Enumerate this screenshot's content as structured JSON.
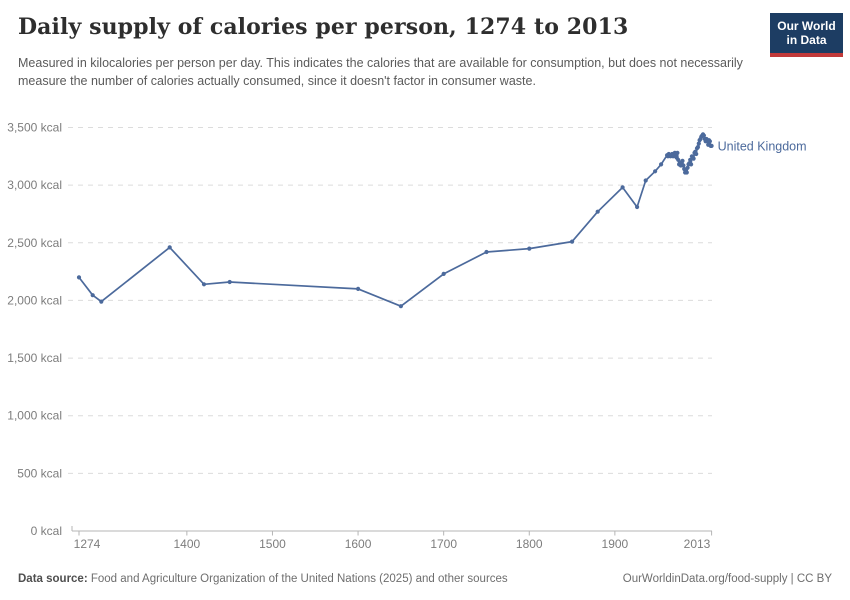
{
  "header": {
    "title": "Daily supply of calories per person, 1274 to 2013",
    "subtitle": "Measured in kilocalories per person per day. This indicates the calories that are available for consumption, but does not necessarily measure the number of calories actually consumed, since it doesn't factor in consumer waste."
  },
  "logo": {
    "line1": "Our World",
    "line2": "in Data",
    "bg_color": "#1d3d63",
    "bar_color": "#c23a3a"
  },
  "footer": {
    "source_label": "Data source:",
    "source_text": " Food and Agriculture Organization of the United Nations (2025) and other sources",
    "link_text": "OurWorldinData.org/food-supply | CC BY"
  },
  "colors": {
    "series_blue": "#4c6a9c",
    "gridline": "#dcdcdc",
    "axis_line": "#b5b5b5",
    "tick_text": "#7d7d7d"
  },
  "chart_data": {
    "type": "line",
    "title": "Daily supply of calories per person, 1274 to 2013",
    "xlabel": "",
    "ylabel": "",
    "unit": "kcal",
    "xlim": [
      1274,
      2013
    ],
    "ylim": [
      0,
      3500
    ],
    "grid": "horizontal dashed",
    "legend_position": "end-of-line label",
    "x_ticks": [
      {
        "v": 1274,
        "label": "1274"
      },
      {
        "v": 1400,
        "label": "1400"
      },
      {
        "v": 1500,
        "label": "1500"
      },
      {
        "v": 1600,
        "label": "1600"
      },
      {
        "v": 1700,
        "label": "1700"
      },
      {
        "v": 1800,
        "label": "1800"
      },
      {
        "v": 1900,
        "label": "1900"
      },
      {
        "v": 2013,
        "label": "2013"
      }
    ],
    "y_ticks": [
      {
        "v": 0,
        "label": "0 kcal"
      },
      {
        "v": 500,
        "label": "500 kcal"
      },
      {
        "v": 1000,
        "label": "1,000 kcal"
      },
      {
        "v": 1500,
        "label": "1,500 kcal"
      },
      {
        "v": 2000,
        "label": "2,000 kcal"
      },
      {
        "v": 2500,
        "label": "2,500 kcal"
      },
      {
        "v": 3000,
        "label": "3,000 kcal"
      },
      {
        "v": 3500,
        "label": "3,500 kcal"
      }
    ],
    "series": [
      {
        "name": "United Kingdom",
        "color": "#4c6a9c",
        "points": [
          [
            1274,
            2200
          ],
          [
            1290,
            2045
          ],
          [
            1300,
            1990
          ],
          [
            1380,
            2460
          ],
          [
            1420,
            2140
          ],
          [
            1450,
            2160
          ],
          [
            1600,
            2100
          ],
          [
            1650,
            1950
          ],
          [
            1700,
            2230
          ],
          [
            1750,
            2420
          ],
          [
            1800,
            2450
          ],
          [
            1850,
            2510
          ],
          [
            1880,
            2770
          ],
          [
            1909,
            2980
          ],
          [
            1926,
            2810
          ],
          [
            1936,
            3040
          ],
          [
            1947,
            3120
          ],
          [
            1954,
            3180
          ],
          [
            1961,
            3260
          ],
          [
            1962,
            3250
          ],
          [
            1963,
            3270
          ],
          [
            1964,
            3260
          ],
          [
            1965,
            3250
          ],
          [
            1966,
            3260
          ],
          [
            1967,
            3270
          ],
          [
            1968,
            3250
          ],
          [
            1969,
            3260
          ],
          [
            1970,
            3280
          ],
          [
            1971,
            3270
          ],
          [
            1972,
            3240
          ],
          [
            1973,
            3280
          ],
          [
            1974,
            3220
          ],
          [
            1975,
            3180
          ],
          [
            1976,
            3190
          ],
          [
            1977,
            3170
          ],
          [
            1978,
            3200
          ],
          [
            1979,
            3210
          ],
          [
            1980,
            3170
          ],
          [
            1981,
            3140
          ],
          [
            1982,
            3110
          ],
          [
            1983,
            3130
          ],
          [
            1984,
            3110
          ],
          [
            1985,
            3150
          ],
          [
            1986,
            3180
          ],
          [
            1987,
            3190
          ],
          [
            1988,
            3220
          ],
          [
            1989,
            3180
          ],
          [
            1990,
            3250
          ],
          [
            1991,
            3240
          ],
          [
            1992,
            3230
          ],
          [
            1993,
            3280
          ],
          [
            1994,
            3290
          ],
          [
            1995,
            3270
          ],
          [
            1996,
            3320
          ],
          [
            1997,
            3330
          ],
          [
            1998,
            3360
          ],
          [
            1999,
            3390
          ],
          [
            2000,
            3400
          ],
          [
            2001,
            3420
          ],
          [
            2002,
            3430
          ],
          [
            2003,
            3440
          ],
          [
            2004,
            3430
          ],
          [
            2005,
            3400
          ],
          [
            2006,
            3380
          ],
          [
            2007,
            3400
          ],
          [
            2008,
            3380
          ],
          [
            2009,
            3350
          ],
          [
            2010,
            3390
          ],
          [
            2011,
            3380
          ],
          [
            2012,
            3340
          ],
          [
            2013,
            3340
          ]
        ]
      }
    ]
  }
}
